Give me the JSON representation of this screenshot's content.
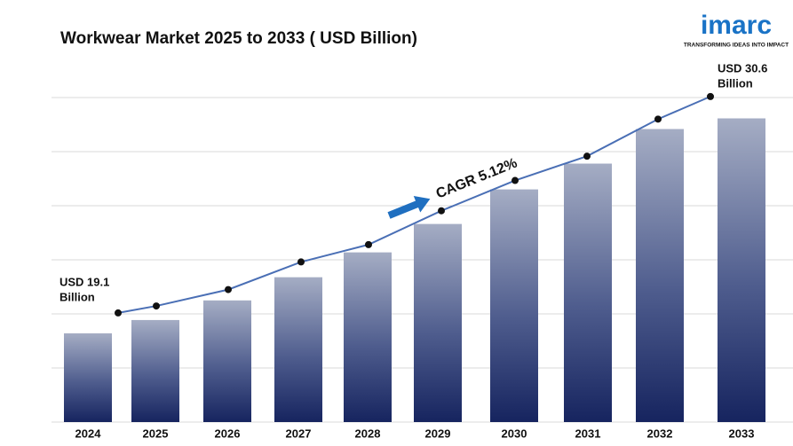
{
  "chart_data": {
    "type": "bar",
    "title": "Workwear Market 2025 to 2033 ( USD Billion)",
    "categories": [
      "2024",
      "2025",
      "2026",
      "2027",
      "2028",
      "2029",
      "2030",
      "2031",
      "2032",
      "2033"
    ],
    "series": [
      {
        "type": "bar",
        "color": "#1c2b6b",
        "values": [
          19.1,
          19.81,
          20.86,
          22.1,
          23.43,
          24.95,
          26.8,
          28.18,
          30.03,
          30.6
        ]
      },
      {
        "type": "line",
        "axis": "y2",
        "color": "#4a6fb5",
        "values": [
          19.1,
          19.47,
          20.34,
          21.81,
          22.73,
          24.53,
          26.14,
          27.43,
          29.4,
          30.6
        ]
      }
    ],
    "ylim": [
      14.35,
      32
    ],
    "y2lim": [
      13.3,
      30.83
    ],
    "annotations": {
      "start": [
        "USD 19.1",
        "Billion"
      ],
      "end": [
        "USD 30.6",
        "Billion"
      ],
      "cagr": "CAGR 5.12%"
    },
    "logo": {
      "name": "imarc",
      "tagline": "TRANSFORMING IDEAS INTO IMPACT"
    }
  }
}
